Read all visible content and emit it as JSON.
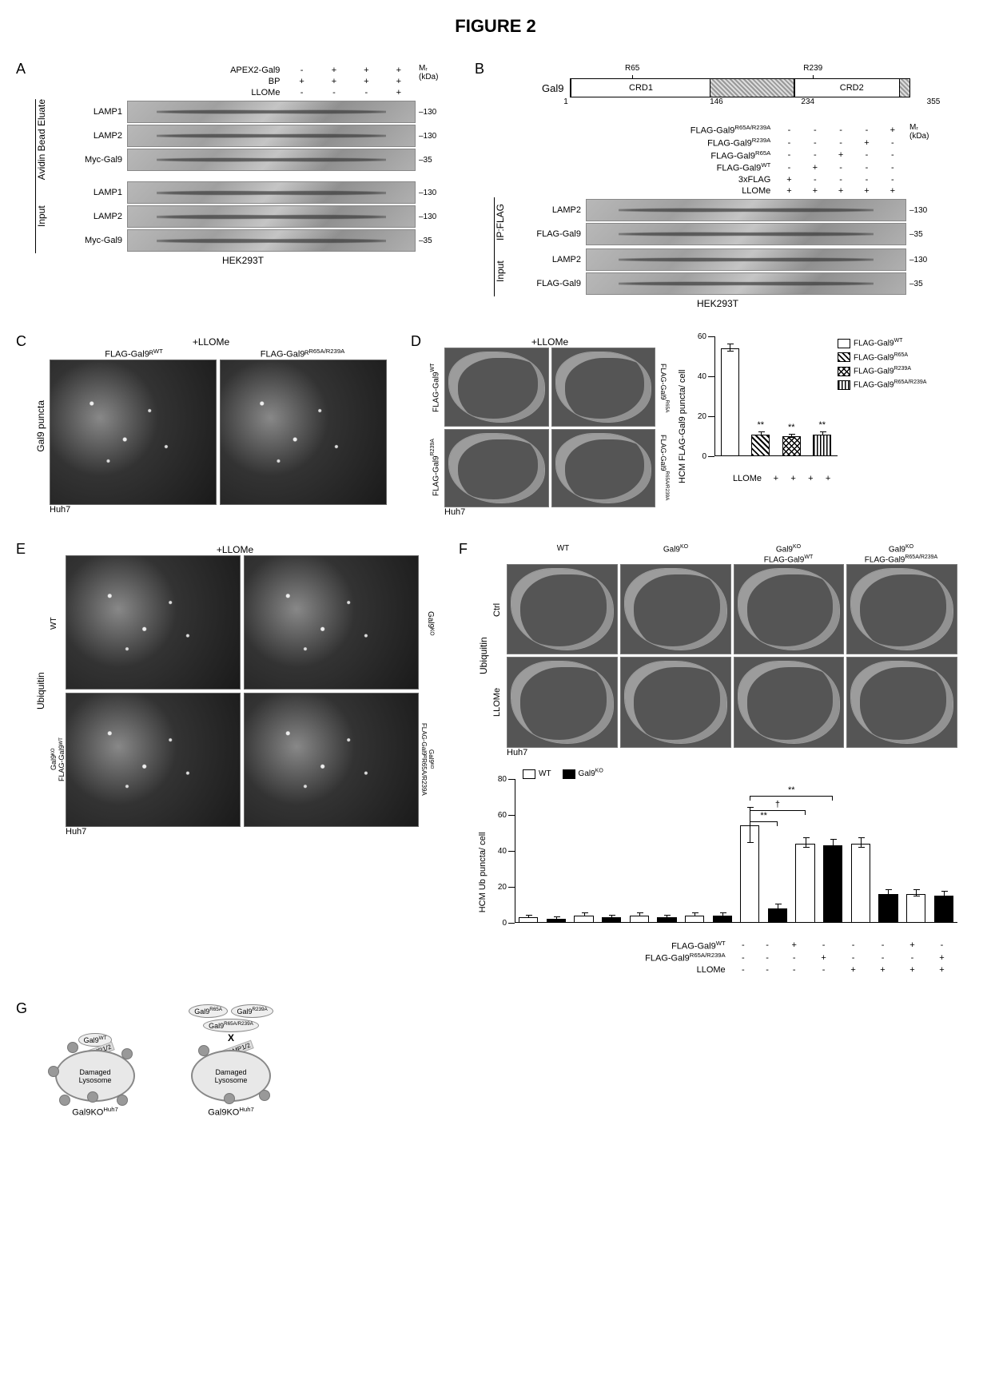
{
  "figure_title": "FIGURE 2",
  "cellLines": {
    "hek": "HEK293T",
    "huh7": "Huh7"
  },
  "mr_label": "Mᵣ\n(kDa)",
  "markers": {
    "m130": "130",
    "m35": "35"
  },
  "A": {
    "label": "A",
    "cond_rows": [
      {
        "lab": "APEX2-Gal9",
        "vals": [
          "-",
          "+",
          "+",
          "+"
        ]
      },
      {
        "lab": "BP",
        "vals": [
          "+",
          "+",
          "+",
          "+"
        ]
      },
      {
        "lab": "LLOMe",
        "vals": [
          "-",
          "-",
          "-",
          "+"
        ]
      }
    ],
    "groups": [
      {
        "side": "Avidin Bead Eluate",
        "rows": [
          {
            "name": "LAMP1",
            "marker": "130"
          },
          {
            "name": "LAMP2",
            "marker": "130"
          },
          {
            "name": "Myc-Gal9",
            "marker": "35"
          }
        ]
      },
      {
        "side": "Input",
        "rows": [
          {
            "name": "LAMP1",
            "marker": "130"
          },
          {
            "name": "LAMP2",
            "marker": "130"
          },
          {
            "name": "Myc-Gal9",
            "marker": "35"
          }
        ]
      }
    ]
  },
  "B": {
    "label": "B",
    "domain": {
      "len": 355,
      "ticks": [
        1,
        146,
        234,
        355
      ],
      "r_sites": [
        {
          "pos": 65,
          "lab": "R65"
        },
        {
          "pos": 239,
          "lab": "R239"
        }
      ],
      "segments": [
        {
          "from": 1,
          "to": 146,
          "label": "CRD1",
          "hatch": false
        },
        {
          "from": 146,
          "to": 234,
          "label": "",
          "hatch": true
        },
        {
          "from": 234,
          "to": 355,
          "label": "CRD2",
          "hatch": false
        }
      ],
      "name": "Gal9",
      "endhatch": {
        "from": 345,
        "to": 355
      }
    },
    "cond_rows": [
      {
        "lab": "FLAG-Gal9ᴿR65A/R239A",
        "vals": [
          "-",
          "-",
          "-",
          "-",
          "+"
        ]
      },
      {
        "lab": "FLAG-Gal9ᴿR239A",
        "vals": [
          "-",
          "-",
          "-",
          "+",
          "-"
        ]
      },
      {
        "lab": "FLAG-Gal9ᴿR65A",
        "vals": [
          "-",
          "-",
          "+",
          "-",
          "-"
        ]
      },
      {
        "lab": "FLAG-Gal9ᴿWT",
        "vals": [
          "-",
          "+",
          "-",
          "-",
          "-"
        ]
      },
      {
        "lab": "3xFLAG",
        "vals": [
          "+",
          "-",
          "-",
          "-",
          "-"
        ]
      },
      {
        "lab": "LLOMe",
        "vals": [
          "+",
          "+",
          "+",
          "+",
          "+"
        ]
      }
    ],
    "cond_sup": [
      "R65A/R239A",
      "R239A",
      "R65A",
      "WT",
      "",
      ""
    ],
    "groups": [
      {
        "side": "IP:FLAG",
        "rows": [
          {
            "name": "LAMP2",
            "marker": "130"
          },
          {
            "name": "FLAG-Gal9",
            "marker": "35"
          }
        ]
      },
      {
        "side": "Input",
        "rows": [
          {
            "name": "LAMP2",
            "marker": "130"
          },
          {
            "name": "FLAG-Gal9",
            "marker": "35"
          }
        ]
      }
    ]
  },
  "C": {
    "label": "C",
    "top": "+LLOMe",
    "cols": [
      "FLAG-Gal9ᴿ",
      "FLAG-Gal9ᴿ"
    ],
    "cols_sup": [
      "WT",
      "R65A/R239A"
    ],
    "side": "Gal9 puncta"
  },
  "D": {
    "label": "D",
    "top": "+LLOMe",
    "row_labels_pre": "FLAG-Gal9",
    "row_sup": [
      "WT",
      "R239A"
    ],
    "col_sup": [
      "R65A",
      "R65A/R239A"
    ],
    "chart": {
      "ylabel": "HCM FLAG-Gal9 puncta/ cell",
      "ylim": [
        0,
        60
      ],
      "yticks": [
        0,
        20,
        40,
        60
      ],
      "bars": [
        {
          "h": 54,
          "err": 2,
          "pattern": "p-white",
          "sig": ""
        },
        {
          "h": 11,
          "err": 1,
          "pattern": "p-diag",
          "sig": "**"
        },
        {
          "h": 10,
          "err": 1,
          "pattern": "p-cross",
          "sig": "**"
        },
        {
          "h": 11,
          "err": 1,
          "pattern": "p-vert",
          "sig": "**"
        }
      ],
      "legend": [
        {
          "sw": "p-white",
          "t": "FLAG-Gal9",
          "sup": "WT"
        },
        {
          "sw": "p-diag",
          "t": "FLAG-Gal9",
          "sup": "R65A"
        },
        {
          "sw": "p-cross",
          "t": "FLAG-Gal9",
          "sup": "R239A"
        },
        {
          "sw": "p-vert",
          "t": "FLAG-Gal9",
          "sup": "R65A/R239A"
        }
      ],
      "xcond": {
        "lab": "LLOMe",
        "vals": [
          "+",
          "+",
          "+",
          "+"
        ]
      }
    }
  },
  "E": {
    "label": "E",
    "top": "+LLOMe",
    "side": "Ubiquitin",
    "quads_left": [
      "WT",
      "Gal9ᴷᴼ\nFLAG-Gal9ᵂᵀ"
    ],
    "quads_right": [
      "Gal9ᴷᴼ",
      "Gal9ᴷᴼ\nFLAG-Gal9ᴿR65A/R239A"
    ],
    "left_sup": [
      "",
      "WT"
    ],
    "right_sup": [
      "KO",
      "R65A/R239A"
    ]
  },
  "F": {
    "label": "F",
    "side": "Ubiquitin",
    "cols": [
      {
        "t": "WT",
        "sup": ""
      },
      {
        "t": "Gal9",
        "sup": "KO"
      },
      {
        "t": "Gal9",
        "sup": "KO",
        "sub": "FLAG-Gal9",
        "sub_sup": "WT"
      },
      {
        "t": "Gal9",
        "sup": "KO",
        "sub": "FLAG-Gal9",
        "sub_sup": "R65A/R239A"
      }
    ],
    "rows": [
      "Ctrl",
      "LLOMe"
    ],
    "chart": {
      "ylabel": "HCM Ub puncta/ cell",
      "ylim": [
        0,
        80
      ],
      "yticks": [
        0,
        20,
        40,
        60,
        80
      ],
      "legend": [
        {
          "sw": "p-white",
          "t": "WT"
        },
        {
          "sw": "p-black",
          "t": "Gal9",
          "sup": "KO"
        }
      ],
      "bars": [
        {
          "h": 3,
          "err": 1,
          "pattern": "p-white"
        },
        {
          "h": 2,
          "err": 1,
          "pattern": "p-black"
        },
        {
          "h": 4,
          "err": 1,
          "pattern": "p-white"
        },
        {
          "h": 3,
          "err": 1,
          "pattern": "p-black"
        },
        {
          "h": 4,
          "err": 1,
          "pattern": "p-white"
        },
        {
          "h": 3,
          "err": 1,
          "pattern": "p-black"
        },
        {
          "h": 4,
          "err": 1,
          "pattern": "p-white"
        },
        {
          "h": 4,
          "err": 1,
          "pattern": "p-black"
        },
        {
          "h": 54,
          "err": 10,
          "pattern": "p-white"
        },
        {
          "h": 8,
          "err": 2,
          "pattern": "p-black"
        },
        {
          "h": 44,
          "err": 3,
          "pattern": "p-white"
        },
        {
          "h": 43,
          "err": 3,
          "pattern": "p-black"
        },
        {
          "h": 44,
          "err": 3,
          "pattern": "p-white"
        },
        {
          "h": 16,
          "err": 2,
          "pattern": "p-black"
        },
        {
          "h": 16,
          "err": 2,
          "pattern": "p-white"
        },
        {
          "h": 15,
          "err": 2,
          "pattern": "p-black"
        }
      ],
      "sig_lines": [
        {
          "from": 8,
          "to": 11,
          "y": 70,
          "t": "**"
        },
        {
          "from": 8,
          "to": 10,
          "y": 62,
          "t": "†"
        },
        {
          "from": 8,
          "to": 9,
          "y": 56,
          "t": "**"
        }
      ],
      "xconds": [
        {
          "lab": "FLAG-Gal9",
          "sup": "WT",
          "vals": [
            "-",
            "-",
            "+",
            "-",
            "-",
            "-",
            "+",
            "-"
          ]
        },
        {
          "lab": "FLAG-Gal9",
          "sup": "R65A/R239A",
          "vals": [
            "-",
            "-",
            "-",
            "+",
            "-",
            "-",
            "-",
            "+"
          ]
        },
        {
          "lab": "LLOMe",
          "sup": "",
          "vals": [
            "-",
            "-",
            "-",
            "-",
            "+",
            "+",
            "+",
            "+"
          ]
        }
      ]
    }
  },
  "G": {
    "label": "G",
    "left": {
      "tag": "Gal9",
      "sup": "WT",
      "lamp": "LAMP1/2",
      "lyso": "Damaged\nLysosome",
      "caption": "Gal9KO",
      "cap_sup": "Huh7"
    },
    "right": {
      "tags": [
        [
          "Gal9",
          "R65A"
        ],
        [
          "Gal9",
          "R239A"
        ],
        [
          "Gal9",
          "R65A/R239A"
        ]
      ],
      "x": "X",
      "lamp": "LAMP1/2",
      "lyso": "Damaged\nLysosome",
      "caption": "Gal9KO",
      "cap_sup": "Huh7"
    }
  }
}
